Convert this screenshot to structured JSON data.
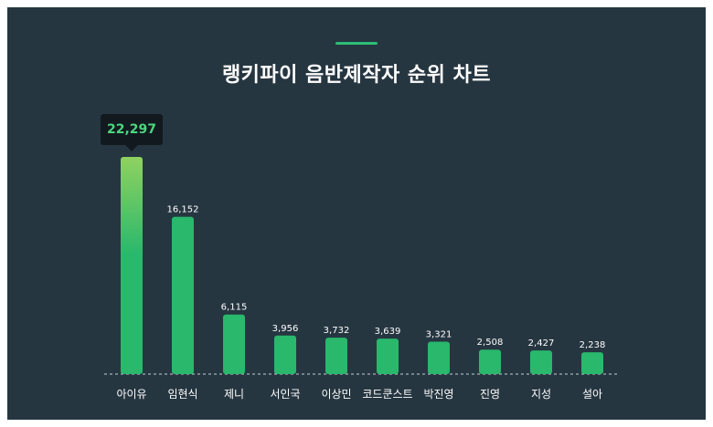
{
  "title": "랭키파이 음반제작자 순위 차트",
  "colors": {
    "background": "#263641",
    "bar": "#29b86c",
    "top_bar_gradient_start": "#8fd260",
    "accent": "#2dbd73",
    "tooltip_bg": "#121a20",
    "tooltip_text": "#4cd67f"
  },
  "tooltip": {
    "label": "22,297"
  },
  "chart_data": {
    "type": "bar",
    "title": "랭키파이 음반제작자 순위 차트",
    "xlabel": "",
    "ylabel": "",
    "categories": [
      "아이유",
      "임현식",
      "제니",
      "서인국",
      "이상민",
      "코드쿤스트",
      "박진영",
      "진영",
      "지성",
      "설아"
    ],
    "values": [
      22297,
      16152,
      6115,
      3956,
      3732,
      3639,
      3321,
      2508,
      2427,
      2238
    ],
    "value_labels": [
      "",
      "16,152",
      "6,115",
      "3,956",
      "3,732",
      "3,639",
      "3,321",
      "2,508",
      "2,427",
      "2,238"
    ],
    "ylim": [
      0,
      22297
    ],
    "grid": false,
    "legend": "none"
  }
}
